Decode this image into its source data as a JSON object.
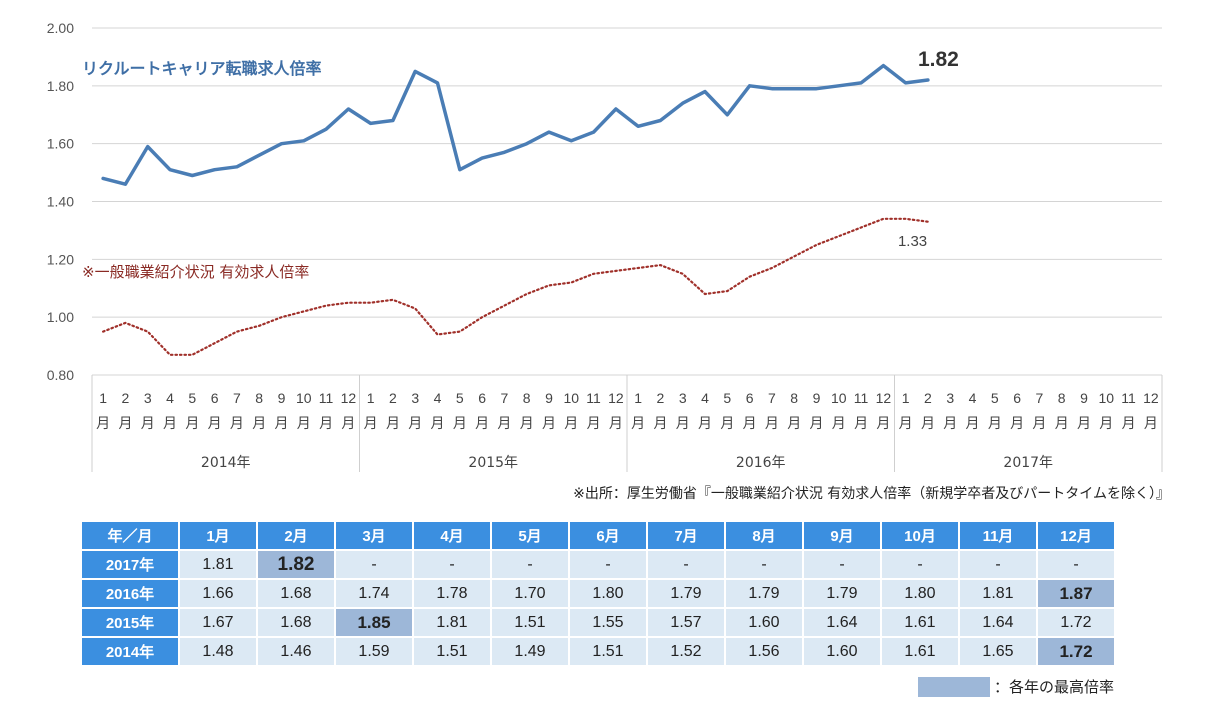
{
  "chart_data": {
    "type": "line",
    "title": "リクルートキャリア転職求人倍率",
    "ylim": [
      0.8,
      2.0
    ],
    "yticks": [
      "0.80",
      "1.00",
      "1.20",
      "1.40",
      "1.60",
      "1.80",
      "2.00"
    ],
    "ytick_values": [
      0.8,
      1.0,
      1.2,
      1.4,
      1.6,
      1.8,
      2.0
    ],
    "month_numbers": [
      "1",
      "2",
      "3",
      "4",
      "5",
      "6",
      "7",
      "8",
      "9",
      "10",
      "11",
      "12"
    ],
    "month_char": "月",
    "years": [
      "2014年",
      "2015年",
      "2016年",
      "2017年"
    ],
    "series": [
      {
        "name": "リクルートキャリア転職求人倍率",
        "style": "solid",
        "color": "#4a7db5",
        "values": [
          1.48,
          1.46,
          1.59,
          1.51,
          1.49,
          1.51,
          1.52,
          1.56,
          1.6,
          1.61,
          1.65,
          1.72,
          1.67,
          1.68,
          1.85,
          1.81,
          1.51,
          1.55,
          1.57,
          1.6,
          1.64,
          1.61,
          1.64,
          1.72,
          1.66,
          1.68,
          1.74,
          1.78,
          1.7,
          1.8,
          1.79,
          1.79,
          1.79,
          1.8,
          1.81,
          1.87,
          1.81,
          1.82
        ],
        "end_label": "1.82"
      },
      {
        "name": "※一般職業紹介状況 有効求人倍率",
        "style": "dotted",
        "color": "#a0302a",
        "values": [
          0.95,
          0.98,
          0.95,
          0.87,
          0.87,
          0.91,
          0.95,
          0.97,
          1.0,
          1.02,
          1.04,
          1.05,
          1.05,
          1.06,
          1.03,
          0.94,
          0.95,
          1.0,
          1.04,
          1.08,
          1.11,
          1.12,
          1.15,
          1.16,
          1.17,
          1.18,
          1.15,
          1.08,
          1.09,
          1.14,
          1.17,
          1.21,
          1.25,
          1.28,
          1.31,
          1.34,
          1.34,
          1.33
        ],
        "end_label": "1.33"
      }
    ]
  },
  "source_note": "※出所：厚生労働省『一般職業紹介状況 有効求人倍率（新規学卒者及びパートタイムを除く）』",
  "table": {
    "header_corner": "年／月",
    "months": [
      "1月",
      "2月",
      "3月",
      "4月",
      "5月",
      "6月",
      "7月",
      "8月",
      "9月",
      "10月",
      "11月",
      "12月"
    ],
    "rows": [
      {
        "year": "2017年",
        "values": [
          "1.81",
          "1.82",
          "-",
          "-",
          "-",
          "-",
          "-",
          "-",
          "-",
          "-",
          "-",
          "-"
        ],
        "highlight": 1
      },
      {
        "year": "2016年",
        "values": [
          "1.66",
          "1.68",
          "1.74",
          "1.78",
          "1.70",
          "1.80",
          "1.79",
          "1.79",
          "1.79",
          "1.80",
          "1.81",
          "1.87"
        ],
        "highlight": 11
      },
      {
        "year": "2015年",
        "values": [
          "1.67",
          "1.68",
          "1.85",
          "1.81",
          "1.51",
          "1.55",
          "1.57",
          "1.60",
          "1.64",
          "1.61",
          "1.64",
          "1.72"
        ],
        "highlight": 2
      },
      {
        "year": "2014年",
        "values": [
          "1.48",
          "1.46",
          "1.59",
          "1.51",
          "1.49",
          "1.51",
          "1.52",
          "1.56",
          "1.60",
          "1.61",
          "1.65",
          "1.72"
        ],
        "highlight": 11
      }
    ]
  },
  "legend_label": "：各年の最高倍率",
  "legend_color": "#9db7d8"
}
